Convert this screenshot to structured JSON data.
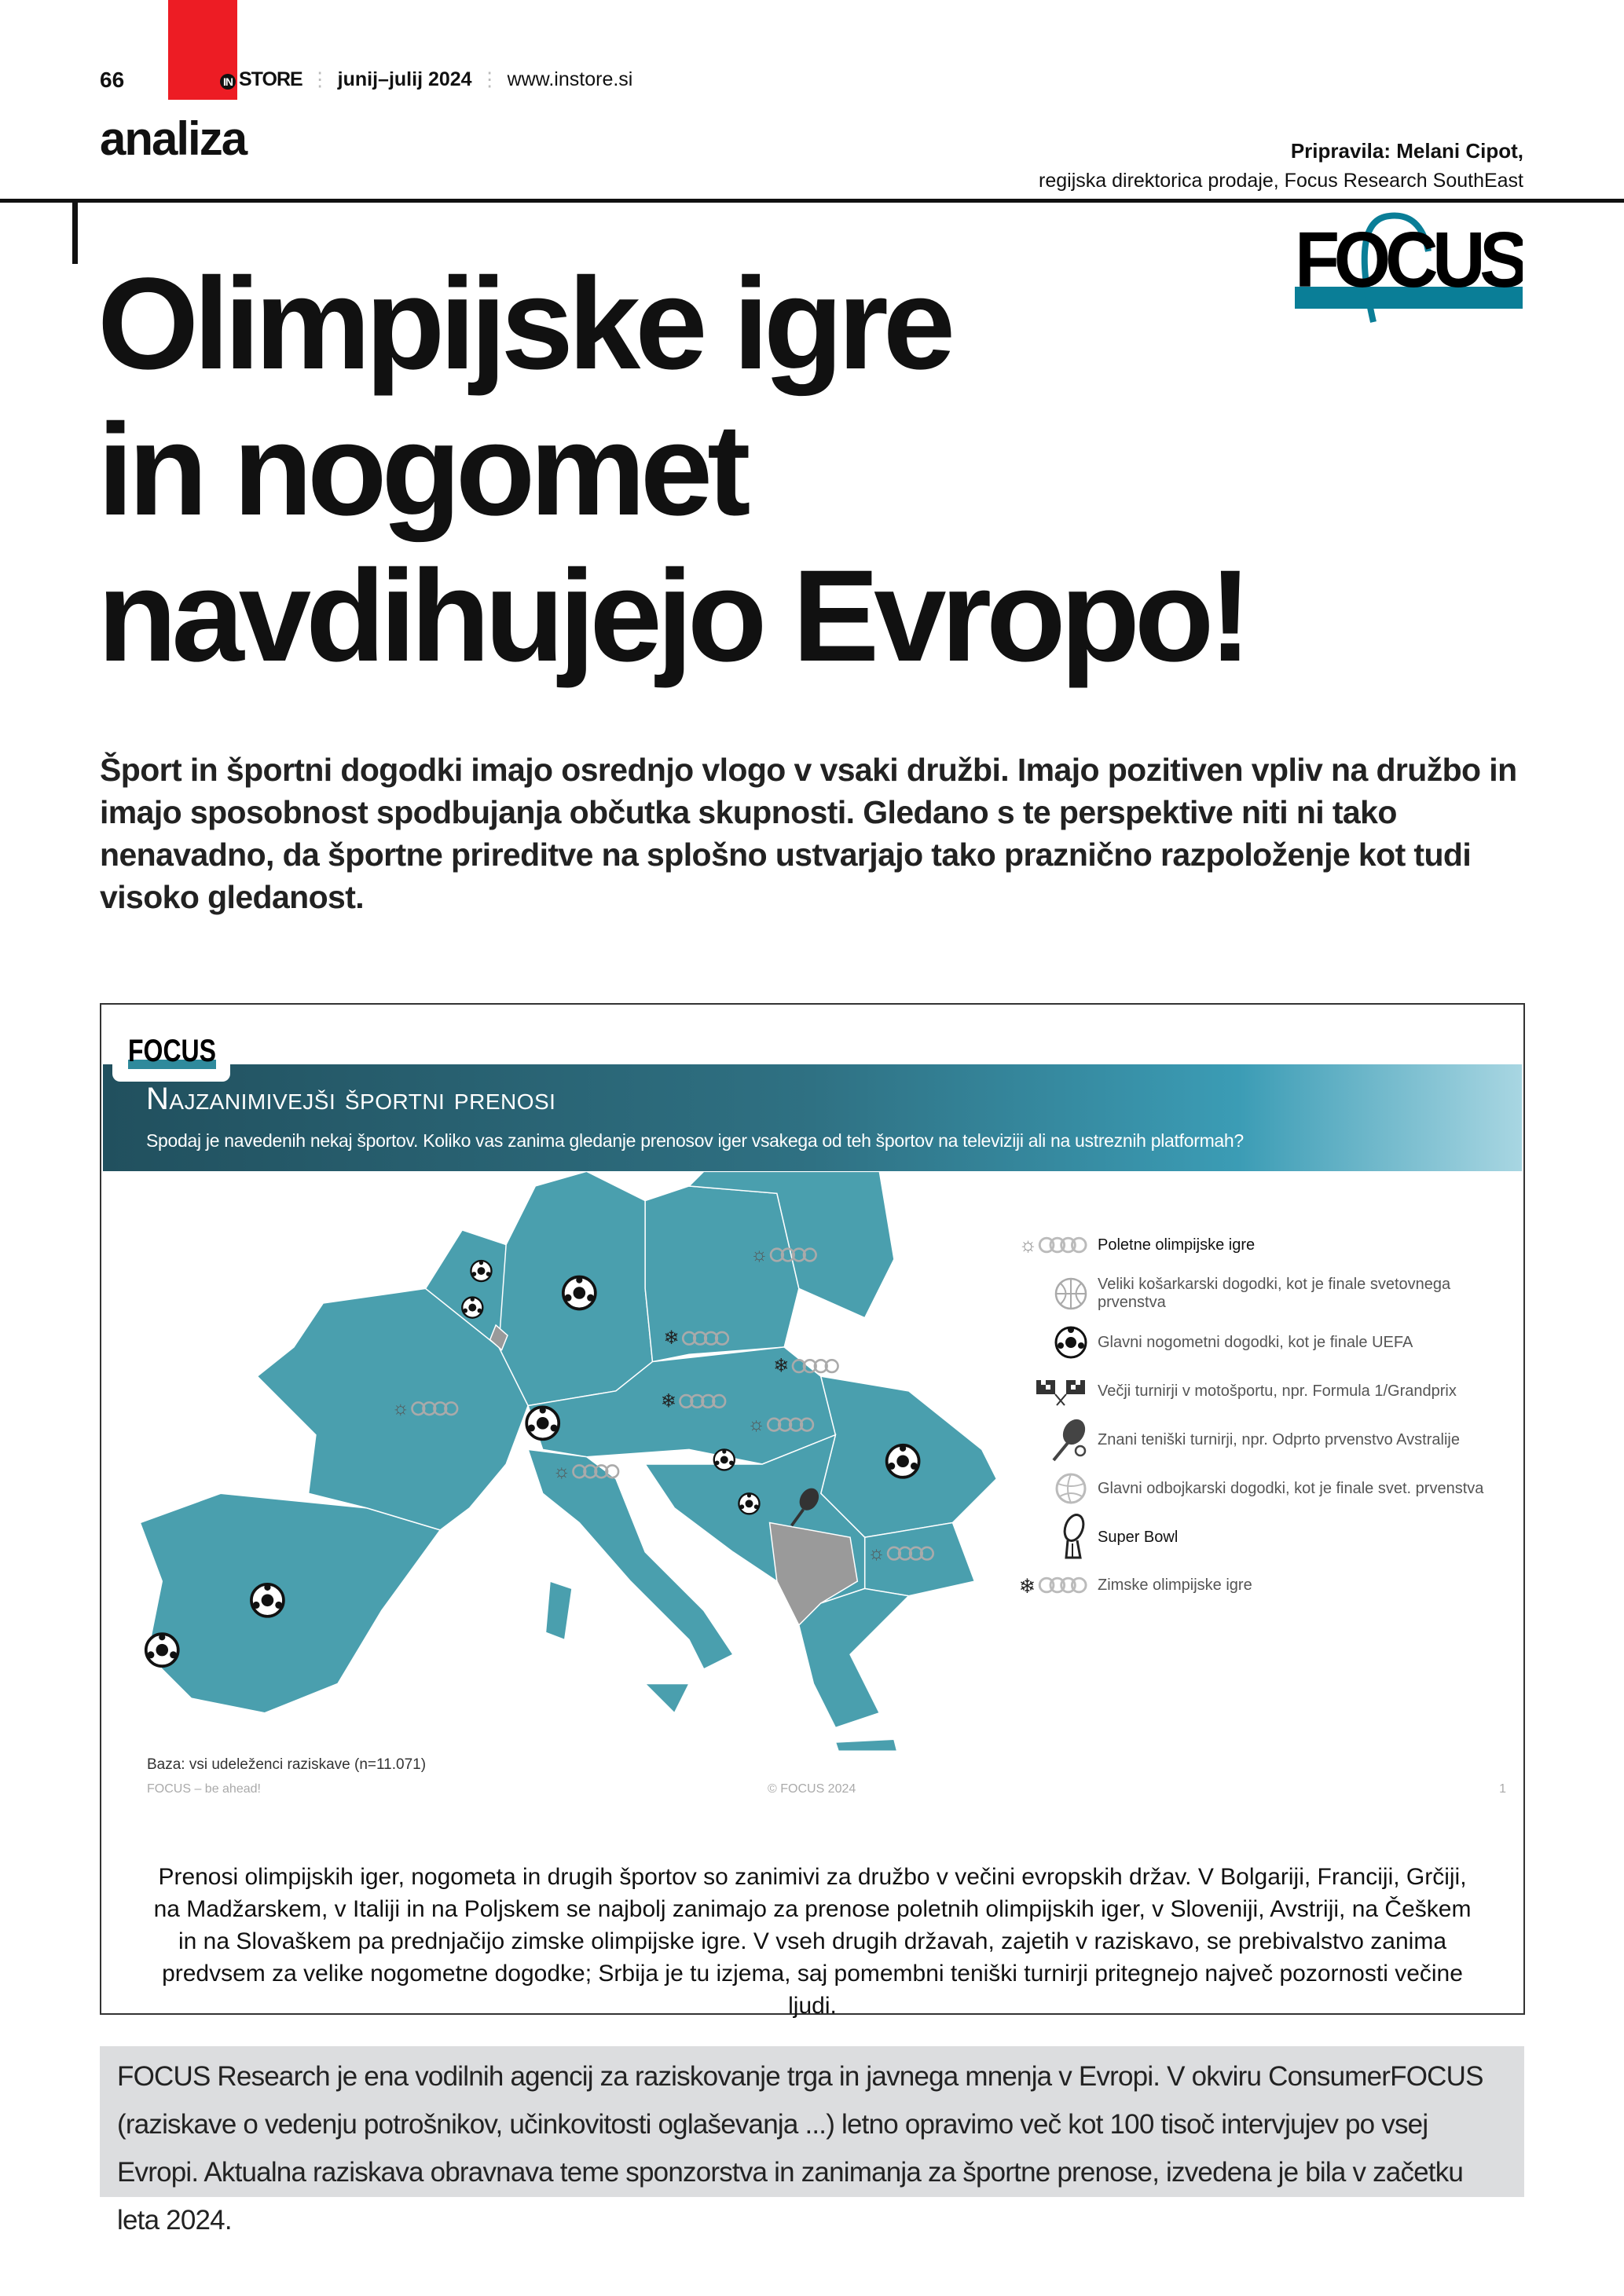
{
  "header": {
    "page_number": "66",
    "publication": "STORE",
    "publication_prefix": "IN",
    "issue": "junij–julij 2024",
    "website": "www.instore.si",
    "section": "analiza",
    "author_line": "Pripravila: Melani Cipot,",
    "author_role": "regijska direktorica prodaje, Focus Research SouthEast",
    "logo_text": "FOCUS"
  },
  "article": {
    "title_lines": [
      "Olimpijske igre",
      "in nogomet",
      "navdihujejo Evropo!"
    ],
    "lead": "Šport in športni dogodki imajo osrednjo vlogo v vsaki družbi. Imajo pozitiven vpliv na družbo in imajo sposobnost spodbujanja občutka skupnosti. Gledano s te perspektive niti ni tako nenavadno, da športne prireditve na splošno ustvarjajo tako praznično razpoloženje kot tudi visoko gledanost."
  },
  "figure": {
    "logo_text": "FOCUS",
    "title": "Najzanimivejši športni prenosi",
    "subtitle": "Spodaj je navedenih nekaj športov. Koliko vas zanima gledanje prenosov iger vsakega od teh športov na televiziji ali na ustreznih platformah?",
    "legend": [
      {
        "icon": "summer-olympics-icon",
        "label": "Poletne olimpijske igre"
      },
      {
        "icon": "basketball-icon",
        "label": "Veliki košarkarski dogodki, kot je finale svetovnega prvenstva"
      },
      {
        "icon": "soccer-ball-icon",
        "label": "Glavni nogometni dogodki, kot je finale UEFA"
      },
      {
        "icon": "racing-flags-icon",
        "label": "Večji turnirji v motošportu, npr. Formula 1/Grandprix"
      },
      {
        "icon": "tennis-icon",
        "label": "Znani teniški turnirji, npr. Odprto prvenstvo Avstralije"
      },
      {
        "icon": "volleyball-icon",
        "label": "Glavni odbojkarski dogodki, kot je finale svet. prvenstva"
      },
      {
        "icon": "super-bowl-trophy-icon",
        "label": "Super Bowl"
      },
      {
        "icon": "winter-olympics-icon",
        "label": "Zimske olimpijske igre"
      }
    ],
    "base_note": "Baza: vsi udeleženci raziskave (n=11.071)",
    "footer_left": "FOCUS – be ahead!",
    "footer_center": "© FOCUS 2024",
    "footer_right": "1",
    "colors": {
      "map_fill": "#4a9fae",
      "no_data": "#9a9a9a",
      "banner": "#2f7183"
    },
    "caption": "Prenosi olimpijskih iger, nogometa in drugih športov so zanimivi za družbo v večini evropskih držav. V Bolgariji, Franciji, Grčiji, na Madžarskem, v Italiji in na Poljskem se najbolj zanimajo za prenose poletnih olimpijskih iger, v Sloveniji, Avstriji, na Češkem in na Slovaškem pa prednjačijo zimske olimpijske igre. V vseh drugih državah, zajetih v raziskavo, se prebivalstvo zanima predvsem za velike nogometne dogodke; Srbija je tu izjema, saj pomembni teniški turnirji pritegnejo največ pozornosti večine ljudi."
  },
  "about_box": {
    "text": "FOCUS Research je ena vodilnih agencij za raziskovanje trga in javnega mnenja v Evropi. V okviru ConsumerFOCUS (raziskave o vedenju potrošnikov, učinkovitosti oglaševanja ...) letno opravimo več kot 100 tisoč intervjujev po vsej Evropi. Aktualna raziskava obravnava teme sponzorstva in zanimanja za športne prenose, izvedena je bila v začetku leta 2024."
  }
}
